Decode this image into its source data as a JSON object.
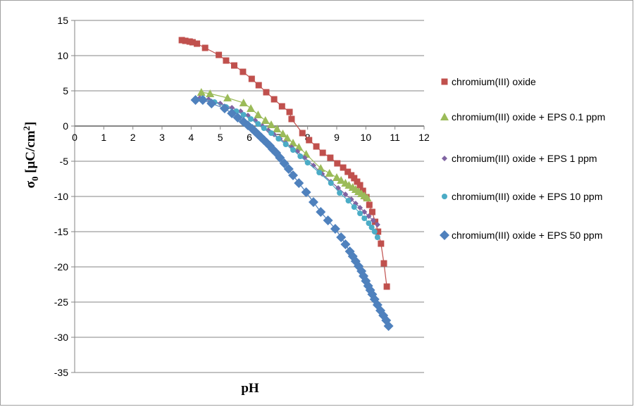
{
  "chart_data": {
    "type": "scatter",
    "title": "",
    "xlabel": "pH",
    "ylabel": {
      "main": "σ",
      "sub": "0",
      "unit": " [μC/cm",
      "sup": "2",
      "close": "]"
    },
    "xlim": [
      0,
      12
    ],
    "ylim": [
      -35,
      15
    ],
    "xticks": [
      0,
      1,
      2,
      3,
      4,
      5,
      6,
      7,
      8,
      9,
      10,
      11,
      12
    ],
    "yticks": [
      15,
      10,
      5,
      0,
      -5,
      -10,
      -15,
      -20,
      -25,
      -30,
      -35
    ],
    "grid": "horizontal",
    "legend_position": "right",
    "series": [
      {
        "name": "chromium(III) oxide",
        "color": "#C0504D",
        "marker": "square",
        "x": [
          3.68,
          3.8,
          3.95,
          4.05,
          4.2,
          4.48,
          4.95,
          5.2,
          5.48,
          5.78,
          6.08,
          6.32,
          6.58,
          6.85,
          7.12,
          7.38,
          7.45,
          7.82,
          8.05,
          8.3,
          8.52,
          8.78,
          9.02,
          9.22,
          9.38,
          9.5,
          9.6,
          9.7,
          9.8,
          9.9,
          10.02,
          10.12,
          10.22,
          10.32,
          10.42,
          10.52,
          10.62,
          10.72
        ],
        "y": [
          12.2,
          12.1,
          12.0,
          11.9,
          11.7,
          11.1,
          10.1,
          9.3,
          8.6,
          7.7,
          6.7,
          5.8,
          4.8,
          3.8,
          2.8,
          2.0,
          1.0,
          -1.0,
          -2.0,
          -2.9,
          -3.8,
          -4.5,
          -5.3,
          -5.9,
          -6.5,
          -7.0,
          -7.4,
          -7.9,
          -8.4,
          -9.2,
          -10.1,
          -11.2,
          -12.2,
          -13.6,
          -15.0,
          -16.7,
          -19.5,
          -22.8
        ]
      },
      {
        "name": "chromium(III) oxide + EPS 0.1 ppm",
        "color": "#9BBB59",
        "marker": "triangle",
        "x": [
          4.35,
          4.65,
          5.25,
          5.8,
          6.05,
          6.3,
          6.55,
          6.75,
          6.95,
          7.15,
          7.3,
          7.5,
          7.7,
          7.95,
          8.45,
          8.75,
          9.0,
          9.15,
          9.3,
          9.42,
          9.55,
          9.65,
          9.75,
          9.85,
          9.95,
          10.05
        ],
        "y": [
          4.8,
          4.6,
          4.0,
          3.3,
          2.5,
          1.6,
          0.8,
          0.2,
          -0.4,
          -1.1,
          -1.7,
          -2.4,
          -3.0,
          -4.0,
          -6.0,
          -6.7,
          -7.3,
          -7.7,
          -8.1,
          -8.4,
          -8.7,
          -9.0,
          -9.3,
          -9.6,
          -9.9,
          -10.2
        ]
      },
      {
        "name": "chromium(III) oxide + EPS 1 ppm",
        "color": "#8064A2",
        "marker": "small-diamond",
        "x": [
          4.3,
          4.6,
          5.0,
          5.4,
          5.7,
          5.95,
          6.2,
          6.45,
          6.65,
          6.85,
          7.05,
          7.25,
          7.45,
          7.65,
          7.9,
          8.2,
          8.5,
          8.8,
          9.05,
          9.3,
          9.5,
          9.65,
          9.8,
          9.95,
          10.1,
          10.25,
          10.4
        ],
        "y": [
          4.0,
          3.8,
          3.2,
          2.6,
          2.1,
          1.5,
          0.8,
          0.0,
          -0.6,
          -1.2,
          -1.8,
          -2.4,
          -3.0,
          -3.6,
          -4.5,
          -5.6,
          -6.8,
          -7.9,
          -8.8,
          -9.7,
          -10.4,
          -11.0,
          -11.6,
          -12.2,
          -12.8,
          -13.4,
          -14.0
        ]
      },
      {
        "name": "chromium(III) oxide + EPS 10 ppm",
        "color": "#4BACC6",
        "marker": "circle",
        "x": [
          4.4,
          4.8,
          5.2,
          5.55,
          5.8,
          6.05,
          6.3,
          6.5,
          6.75,
          7.0,
          7.25,
          7.5,
          7.75,
          8.0,
          8.4,
          8.8,
          9.1,
          9.4,
          9.6,
          9.8,
          9.95,
          10.1,
          10.2,
          10.3,
          10.4
        ],
        "y": [
          3.9,
          3.4,
          2.7,
          2.1,
          1.6,
          1.0,
          0.3,
          -0.3,
          -1.0,
          -1.8,
          -2.6,
          -3.4,
          -4.3,
          -5.2,
          -6.6,
          -8.1,
          -9.5,
          -10.6,
          -11.5,
          -12.4,
          -13.1,
          -13.8,
          -14.4,
          -15.0,
          -15.8
        ]
      },
      {
        "name": "chromium(III) oxide + EPS 50 ppm",
        "color": "#4F81BD",
        "marker": "diamond",
        "x": [
          4.15,
          4.4,
          4.7,
          5.15,
          5.4,
          5.6,
          5.8,
          5.95,
          6.1,
          6.2,
          6.3,
          6.4,
          6.5,
          6.6,
          6.7,
          6.8,
          6.92,
          7.05,
          7.2,
          7.35,
          7.5,
          7.7,
          7.95,
          8.2,
          8.45,
          8.7,
          8.95,
          9.15,
          9.3,
          9.45,
          9.55,
          9.65,
          9.75,
          9.85,
          9.92,
          10.0,
          10.08,
          10.15,
          10.22,
          10.3,
          10.4,
          10.5,
          10.6,
          10.7,
          10.78
        ],
        "y": [
          3.7,
          3.7,
          3.2,
          2.5,
          1.8,
          1.2,
          0.6,
          0.1,
          -0.4,
          -0.8,
          -1.2,
          -1.6,
          -2.0,
          -2.4,
          -2.8,
          -3.3,
          -3.8,
          -4.5,
          -5.3,
          -6.1,
          -7.0,
          -8.1,
          -9.4,
          -10.8,
          -12.2,
          -13.4,
          -14.6,
          -15.8,
          -16.8,
          -17.8,
          -18.5,
          -19.2,
          -19.9,
          -20.6,
          -21.3,
          -22.0,
          -22.7,
          -23.3,
          -23.9,
          -24.6,
          -25.4,
          -26.2,
          -26.9,
          -27.6,
          -28.4
        ]
      }
    ]
  }
}
